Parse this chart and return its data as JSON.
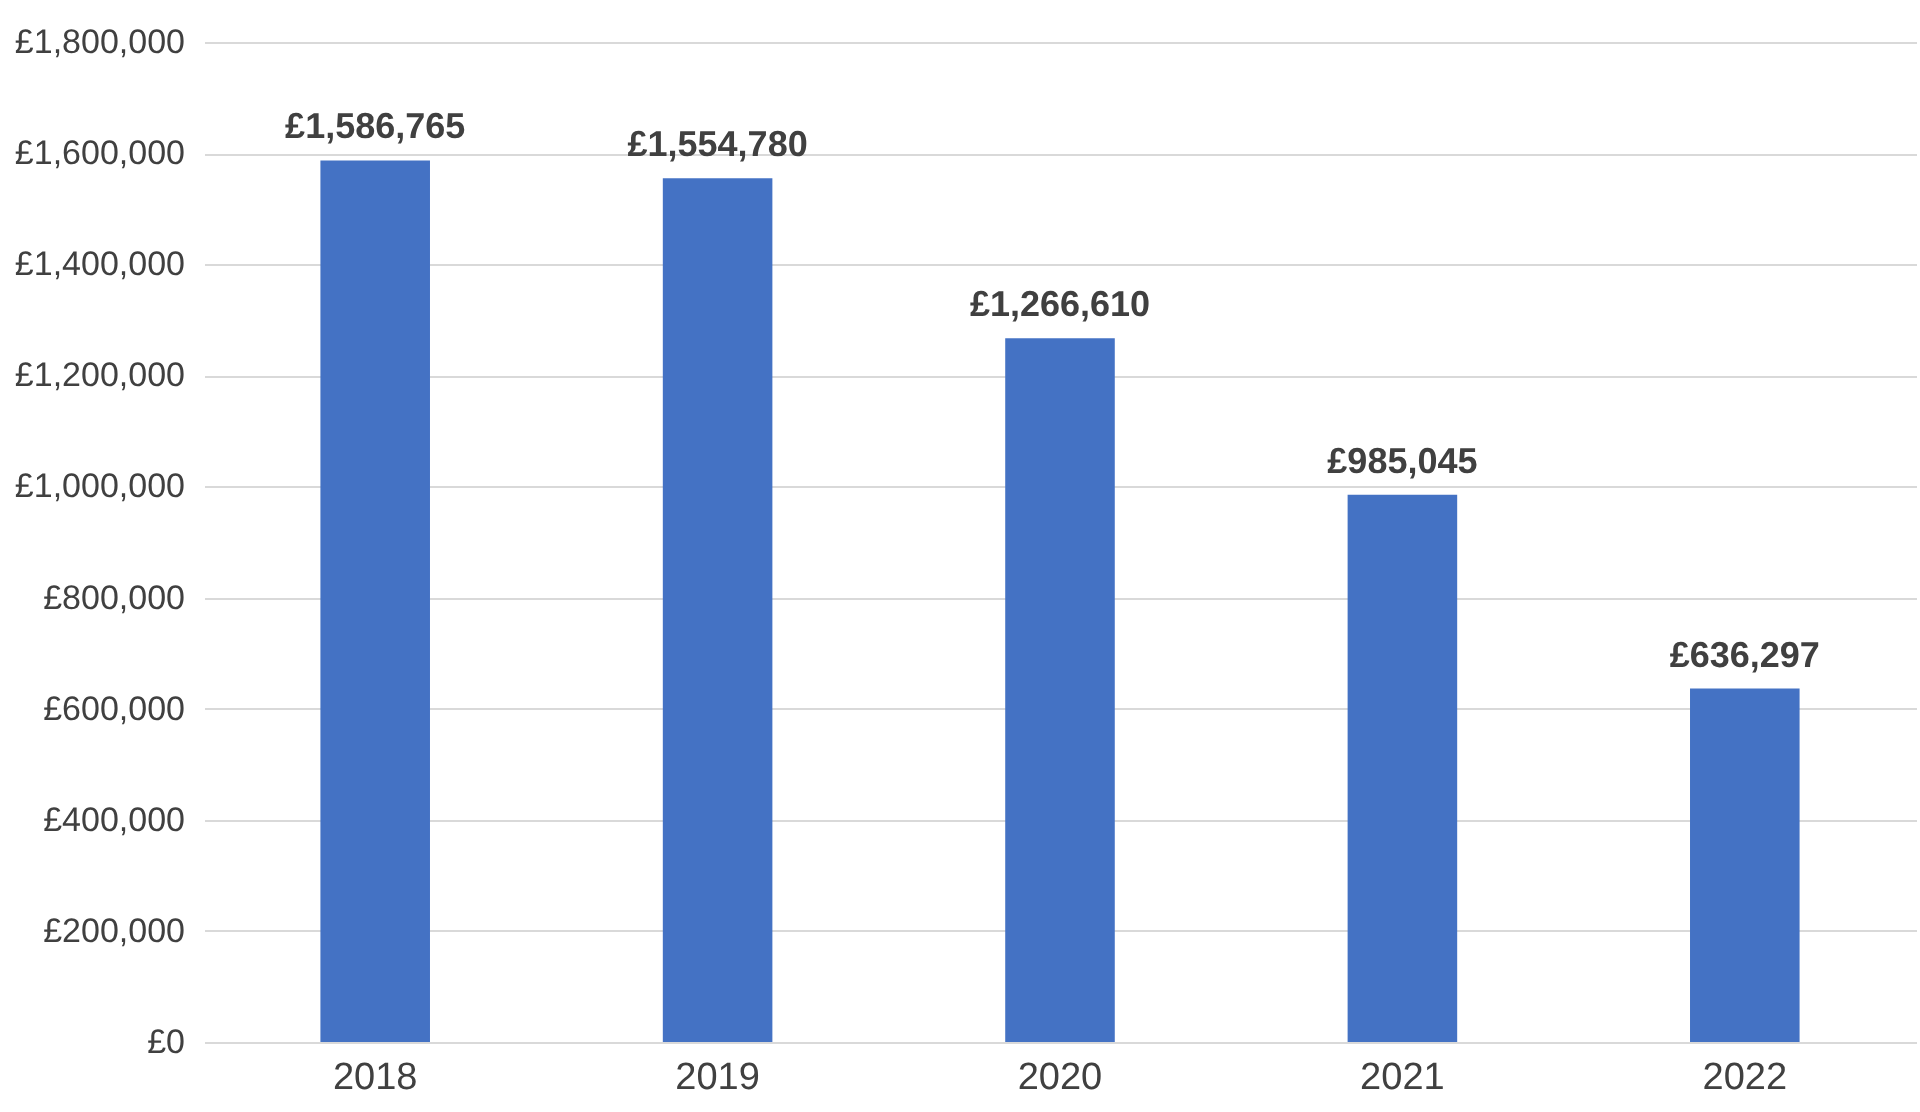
{
  "chart_data": {
    "type": "bar",
    "categories": [
      "2018",
      "2019",
      "2020",
      "2021",
      "2022"
    ],
    "values": [
      1586765,
      1554780,
      1266610,
      985045,
      636297
    ],
    "value_labels": [
      "£1,586,765",
      "£1,554,780",
      "£1,266,610",
      "£985,045",
      "£636,297"
    ],
    "color": "#4472c4",
    "ylim": [
      0,
      1800000
    ],
    "yticks": [
      {
        "value": 0,
        "label": "£0"
      },
      {
        "value": 200000,
        "label": "£200,000"
      },
      {
        "value": 400000,
        "label": "£400,000"
      },
      {
        "value": 600000,
        "label": "£600,000"
      },
      {
        "value": 800000,
        "label": "£800,000"
      },
      {
        "value": 1000000,
        "label": "£1,000,000"
      },
      {
        "value": 1200000,
        "label": "£1,200,000"
      },
      {
        "value": 1400000,
        "label": "£1,400,000"
      },
      {
        "value": 1600000,
        "label": "£1,600,000"
      },
      {
        "value": 1800000,
        "label": "£1,800,000"
      }
    ],
    "grid": "y"
  }
}
